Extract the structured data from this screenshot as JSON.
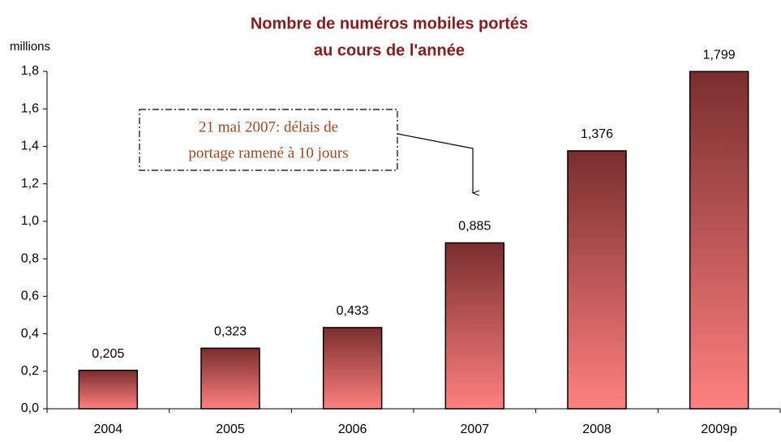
{
  "chart_data": {
    "type": "bar",
    "title": [
      "Nombre de numéros mobiles portés",
      "au cours de l'année"
    ],
    "y_label": "millions",
    "annotation": [
      "21 mai 2007: délais de",
      "portage ramené à 10 jours"
    ],
    "categories": [
      "2004",
      "2005",
      "2006",
      "2007",
      "2008",
      "2009p"
    ],
    "values": [
      0.205,
      0.323,
      0.433,
      0.885,
      1.376,
      1.799
    ],
    "value_labels": [
      "0,205",
      "0,323",
      "0,433",
      "0,885",
      "1,376",
      "1,799"
    ],
    "color": [
      "#7a2e2e",
      "#ff8080"
    ],
    "ylim": [
      0,
      1.8
    ],
    "yticks": [
      {
        "value": 0,
        "label": "0,0"
      },
      {
        "value": 0.2,
        "label": "0,2"
      },
      {
        "value": 0.4,
        "label": "0,4"
      },
      {
        "value": 0.6,
        "label": "0,6"
      },
      {
        "value": 0.8,
        "label": "0,8"
      },
      {
        "value": 1.0,
        "label": "1,0"
      },
      {
        "value": 1.2,
        "label": "1,2"
      },
      {
        "value": 1.4,
        "label": "1,4"
      },
      {
        "value": 1.6,
        "label": "1,6"
      },
      {
        "value": 1.8,
        "label": "1,8"
      }
    ]
  }
}
